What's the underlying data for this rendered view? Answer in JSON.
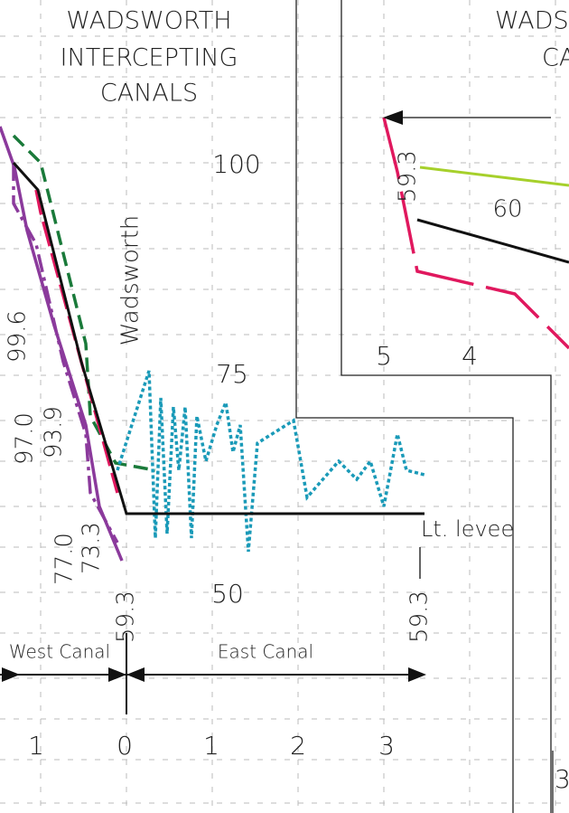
{
  "left_panel": {
    "title": [
      "WADSWORTH",
      "INTERCEPTING",
      "CANALS"
    ],
    "elevation_ticks": [
      "100",
      "75",
      "50"
    ],
    "channel_label": "Wadsworth",
    "curve_labels": [
      "99.6",
      "97.0",
      "93.9",
      "77.0",
      "73.3",
      "59.3",
      "59.3"
    ],
    "levee_label": "Lt. levee",
    "west_label": "West Canal",
    "east_label": "East Canal",
    "distance_ticks": [
      "1",
      "0",
      "1",
      "2",
      "3"
    ]
  },
  "right_panel": {
    "title": [
      "WADS",
      "CA"
    ],
    "elevation_tick": "60",
    "curve_label": "59.3",
    "distance_ticks": [
      "5",
      "4"
    ],
    "corner_tick": "3"
  }
}
